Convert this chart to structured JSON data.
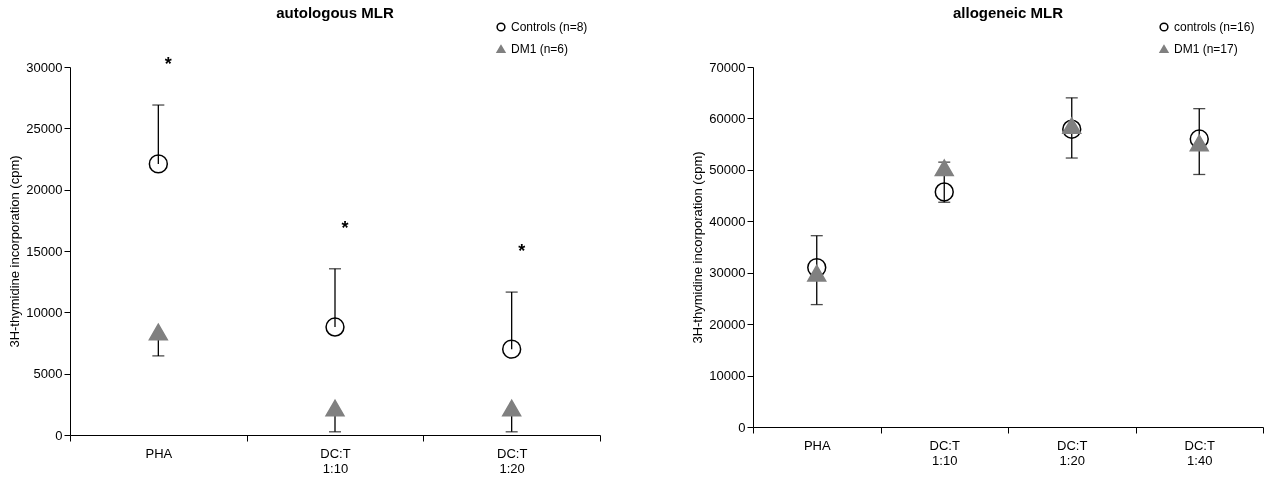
{
  "chart_data": [
    {
      "type": "scatter",
      "title": "autologous MLR",
      "ylabel": "3H-thymidine incorporation (cpm)",
      "categories": [
        "PHA",
        "DC:T\n1:10",
        "DC:T\n1:20"
      ],
      "series": [
        {
          "name": "Controls (n=8)",
          "color": "#000000",
          "marker": "circle",
          "values": [
            22100,
            8800,
            7000
          ],
          "errors": [
            [
              22100,
              26900
            ],
            [
              8800,
              13550
            ],
            [
              7000,
              11650
            ]
          ]
        },
        {
          "name": "DM1 (n=6)",
          "color": "#808080",
          "marker": "triangle",
          "values": [
            8400,
            2200,
            2200
          ],
          "errors": [
            [
              6450,
              8400
            ],
            [
              260,
              2200
            ],
            [
              260,
              2200
            ]
          ]
        }
      ],
      "ylim": [
        0,
        30000
      ],
      "yticks": [
        0,
        5000,
        10000,
        15000,
        20000,
        25000,
        30000
      ],
      "grid": false,
      "legend": "top right",
      "annotations": [
        "*",
        "*",
        "*"
      ]
    },
    {
      "type": "scatter",
      "title": "allogeneic MLR",
      "ylabel": "3H-thymidine incorporation (cpm)",
      "categories": [
        "PHA",
        "DC:T\n1:10",
        "DC:T\n1:20",
        "DC:T\n1:40"
      ],
      "series": [
        {
          "name": "controls (n=16)",
          "color": "#000000",
          "marker": "circle",
          "values": [
            31000,
            45700,
            57900,
            56000
          ],
          "errors": [
            [
              23800,
              37200
            ],
            [
              43700,
              51500
            ],
            [
              52300,
              64000
            ],
            [
              49100,
              61900
            ]
          ]
        },
        {
          "name": "DM1 (n=17)",
          "color": "#808080",
          "marker": "triangle",
          "values": [
            29900,
            50400,
            58600,
            55200
          ]
        }
      ],
      "ylim": [
        0,
        70000
      ],
      "yticks": [
        0,
        10000,
        20000,
        30000,
        40000,
        50000,
        60000,
        70000
      ],
      "grid": false,
      "legend": "top right"
    }
  ]
}
